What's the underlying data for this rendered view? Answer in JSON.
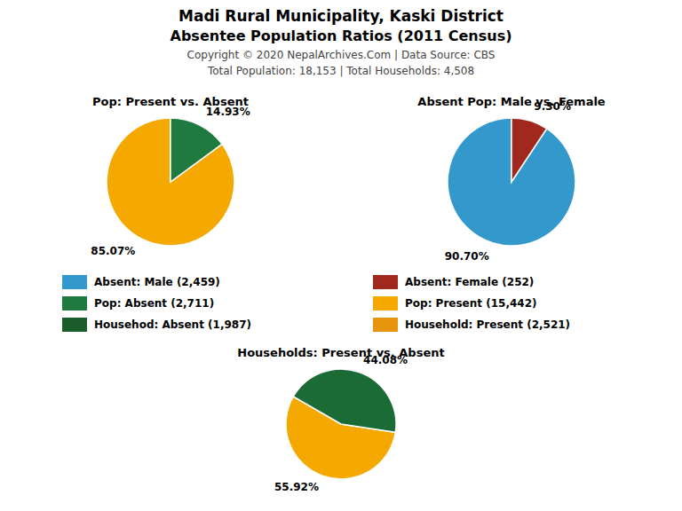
{
  "title": "Madi Rural Municipality, Kaski District",
  "subtitle": "Absentee Population Ratios (2011 Census)",
  "annotations": [
    "Copyright © 2020 NepalArchives.Com | Data Source: CBS",
    "Total Population: 18,153 | Total Households: 4,508"
  ],
  "series": [
    {
      "name": "Absent: Male (2,459)",
      "color": "#3399CC"
    },
    {
      "name": "Absent: Female (252)",
      "color": "#A0281C"
    },
    {
      "name": "Pop: Absent (2,711)",
      "color": "#1E7A3E"
    },
    {
      "name": "Pop: Present (15,442)",
      "color": "#F5A800"
    },
    {
      "name": "Househod: Absent (1,987)",
      "color": "#1A5C2A"
    },
    {
      "name": "Household: Present (2,521)",
      "color": "#E8940A"
    }
  ],
  "chart_data": [
    {
      "type": "pie",
      "title": "Pop: Present vs. Absent",
      "values": [
        85.07,
        14.93
      ],
      "value_labels": [
        "85.07%",
        "14.93%"
      ],
      "colors": [
        "#F5A800",
        "#1E7A3E"
      ],
      "data_labels": true
    },
    {
      "type": "pie",
      "title": "Absent Pop: Male vs. Female",
      "values": [
        90.7,
        9.3
      ],
      "value_labels": [
        "90.70%",
        "9.30%"
      ],
      "colors": [
        "#3399CC",
        "#A0281C"
      ],
      "data_labels": true
    },
    {
      "type": "pie",
      "title": "Households: Present vs. Absent",
      "values": [
        55.92,
        44.08
      ],
      "value_labels": [
        "55.92%",
        "44.08%"
      ],
      "colors": [
        "#F5A800",
        "#1A6B35"
      ],
      "data_labels": true
    }
  ]
}
